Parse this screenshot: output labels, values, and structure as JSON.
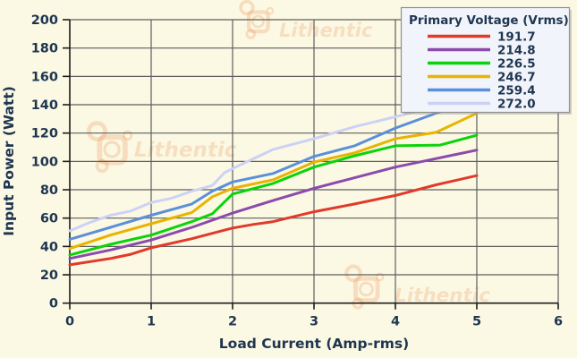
{
  "watermark": {
    "text": "Lithentic"
  },
  "colors": {
    "background": "#fbf9e4",
    "grid": "#5e5e5e",
    "axis": "#1c1c1c",
    "text": "#1f3550",
    "legend_bg": "#f1f4fb",
    "legend_border": "#909090",
    "watermark": "#efa06e"
  },
  "chart_data": {
    "type": "line",
    "title": "",
    "xlabel": "Load Current (Amp-rms)",
    "ylabel": "Input Power (Watt)",
    "xlim": [
      0,
      6
    ],
    "ylim": [
      0,
      200
    ],
    "xticks": [
      "0",
      "1",
      "2",
      "3",
      "4",
      "5",
      "6"
    ],
    "yticks": [
      "0",
      "20",
      "40",
      "60",
      "80",
      "100",
      "120",
      "140",
      "160",
      "180",
      "200"
    ],
    "grid": true,
    "legend_title": "Primary Voltage (Vrms)",
    "legend_position": "top-right",
    "series": [
      {
        "name": "191.7",
        "color": "#e13a2b",
        "points": [
          [
            0,
            27
          ],
          [
            0.5,
            31.5
          ],
          [
            0.75,
            34.5
          ],
          [
            1,
            39
          ],
          [
            1.5,
            45.5
          ],
          [
            2,
            53
          ],
          [
            2.25,
            55.5
          ],
          [
            2.5,
            57.5
          ],
          [
            3,
            64.5
          ],
          [
            3.5,
            70
          ],
          [
            4,
            76
          ],
          [
            4.5,
            83.5
          ],
          [
            5,
            90
          ]
        ]
      },
      {
        "name": "214.8",
        "color": "#8c4bab",
        "points": [
          [
            0,
            31.5
          ],
          [
            0.5,
            37.5
          ],
          [
            1,
            44.5
          ],
          [
            1.5,
            53.5
          ],
          [
            2,
            63.5
          ],
          [
            2.5,
            72.5
          ],
          [
            3,
            81
          ],
          [
            3.5,
            88.5
          ],
          [
            4,
            96
          ],
          [
            4.5,
            102
          ],
          [
            5,
            108
          ]
        ]
      },
      {
        "name": "226.5",
        "color": "#0bd30b",
        "points": [
          [
            0,
            34
          ],
          [
            0.5,
            41.5
          ],
          [
            1,
            48
          ],
          [
            1.5,
            57.5
          ],
          [
            1.75,
            63
          ],
          [
            2,
            77
          ],
          [
            2.5,
            84.5
          ],
          [
            3,
            96
          ],
          [
            3.5,
            104
          ],
          [
            4,
            111
          ],
          [
            4.55,
            111.5
          ],
          [
            5,
            118.5
          ]
        ]
      },
      {
        "name": "246.7",
        "color": "#e8b400",
        "points": [
          [
            0,
            38.5
          ],
          [
            0.5,
            48
          ],
          [
            1,
            56
          ],
          [
            1.5,
            64
          ],
          [
            1.75,
            75
          ],
          [
            2,
            81
          ],
          [
            2.5,
            87
          ],
          [
            3,
            99.5
          ],
          [
            3.5,
            106
          ],
          [
            4,
            116
          ],
          [
            4.5,
            120.5
          ],
          [
            5,
            134
          ]
        ]
      },
      {
        "name": "259.4",
        "color": "#5b8fda",
        "points": [
          [
            0,
            45
          ],
          [
            0.5,
            53.5
          ],
          [
            1,
            62
          ],
          [
            1.5,
            70
          ],
          [
            1.75,
            79
          ],
          [
            2,
            85.5
          ],
          [
            2.5,
            91.5
          ],
          [
            3,
            103.5
          ],
          [
            3.5,
            111
          ],
          [
            4,
            123.5
          ],
          [
            4.5,
            134
          ],
          [
            5,
            144
          ]
        ]
      },
      {
        "name": "272.0",
        "color": "#cdd2f5",
        "points": [
          [
            0,
            51
          ],
          [
            0.25,
            57
          ],
          [
            0.5,
            62
          ],
          [
            0.75,
            65
          ],
          [
            1,
            71
          ],
          [
            1.25,
            74
          ],
          [
            1.5,
            79
          ],
          [
            1.75,
            83
          ],
          [
            1.9,
            92
          ],
          [
            2,
            95
          ],
          [
            2.5,
            108.5
          ],
          [
            3,
            116
          ],
          [
            3.5,
            124.5
          ],
          [
            4,
            131.5
          ],
          [
            4.5,
            139
          ],
          [
            5,
            146
          ]
        ]
      }
    ]
  }
}
